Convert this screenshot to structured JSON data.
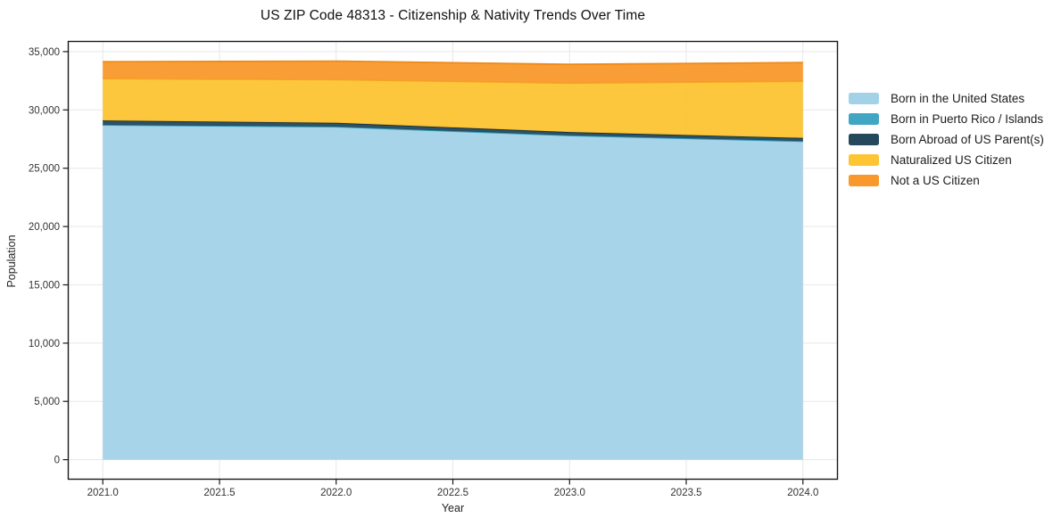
{
  "chart_data": {
    "type": "area",
    "stacked": true,
    "title": "US ZIP Code 48313 - Citizenship & Nativity Trends Over Time",
    "xlabel": "Year",
    "ylabel": "Population",
    "x": [
      2021.0,
      2022.0,
      2023.0,
      2024.0
    ],
    "series": [
      {
        "id": "born-in-the-united-states",
        "name": "Born in the United States",
        "color": "#a3d2e8",
        "edge_color": "#7fbcd9",
        "values": [
          28700,
          28550,
          27800,
          27300
        ]
      },
      {
        "id": "born-in-puerto-rico-islands",
        "name": "Born in Puerto Rico / Islands",
        "color": "#41a6c4",
        "edge_color": "#2f97b5",
        "values": [
          20,
          20,
          20,
          20
        ]
      },
      {
        "id": "born-abroad-of-us-parents",
        "name": "Born Abroad of US Parent(s)",
        "color": "#24495c",
        "edge_color": "#14303e",
        "values": [
          380,
          330,
          280,
          280
        ]
      },
      {
        "id": "naturalized-us-citizen",
        "name": "Naturalized US Citizen",
        "color": "#fdc433",
        "edge_color": "#f3a81f",
        "values": [
          3580,
          3700,
          4200,
          4860
        ]
      },
      {
        "id": "not-a-us-citizen",
        "name": "Not a US Citizen",
        "color": "#f9992b",
        "edge_color": "#ee8a19",
        "values": [
          1450,
          1580,
          1610,
          1600
        ]
      }
    ],
    "stacked_totals": [
      34130,
      34180,
      33910,
      34060
    ],
    "x_tick_values": [
      2021.0,
      2021.5,
      2022.0,
      2022.5,
      2023.0,
      2023.5,
      2024.0
    ],
    "x_tick_labels": [
      "2021.0",
      "2021.5",
      "2022.0",
      "2022.5",
      "2023.0",
      "2023.5",
      "2024.0"
    ],
    "y_tick_values": [
      0,
      5000,
      10000,
      15000,
      20000,
      25000,
      30000,
      35000
    ],
    "y_tick_labels": [
      "0",
      "5,000",
      "10,000",
      "15,000",
      "20,000",
      "25,000",
      "30,000",
      "35,000"
    ],
    "xlim": [
      2020.85,
      2024.15
    ],
    "ylim": [
      -1710,
      35910
    ],
    "grid": true,
    "legend_position": "right"
  },
  "colors": {
    "background": "#ffffff",
    "grid": "#e7e7e7",
    "axis": "#1a1a1a",
    "tick_text": "#333333"
  }
}
